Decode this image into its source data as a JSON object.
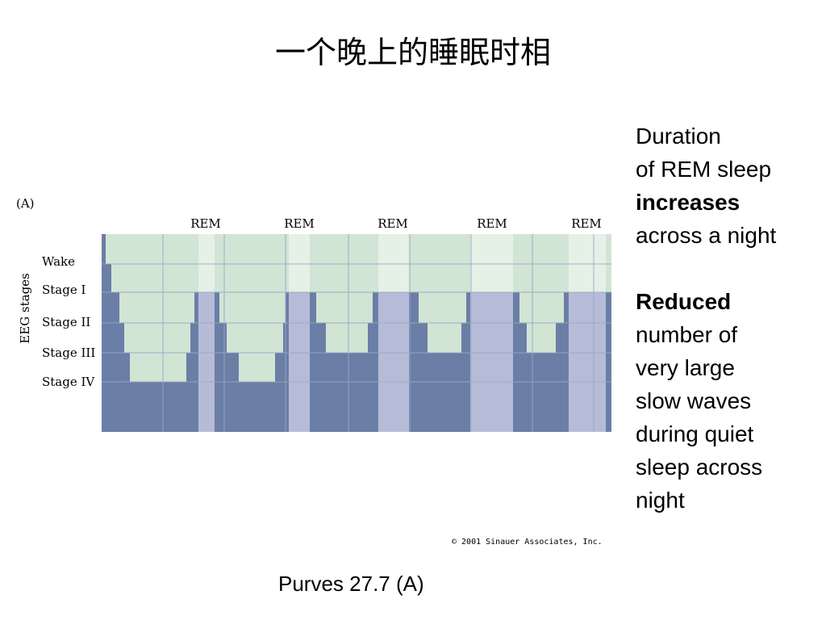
{
  "title": "一个晚上的睡眠时相",
  "figure": {
    "panel_label": "(A)",
    "y_axis_label": "EEG stages",
    "stages": [
      "Wake",
      "Stage I",
      "Stage II",
      "Stage III",
      "Stage IV"
    ],
    "rem_label": "REM",
    "rem_markers": [
      "REM",
      "REM",
      "REM",
      "REM",
      "REM"
    ],
    "colors": {
      "quiet_sleep_fill": "#6b7ea6",
      "rem_fill": "#b6bcd8",
      "wake_background": "#d2e4d4",
      "rem_highlight": "#e5f0e7",
      "grid_line": "#9aa8c4"
    },
    "copyright": "© 2001 Sinauer Associates, Inc."
  },
  "notes": {
    "rem": {
      "line1": "Duration",
      "line2": "of REM sleep",
      "line3": "increases",
      "line4": "across a night"
    },
    "slow_waves": {
      "line1": "Reduced",
      "line2": "number of",
      "line3": "very large",
      "line4": "slow waves",
      "line5": "during quiet",
      "line6": "sleep across",
      "line7": "night"
    }
  },
  "caption": "Purves 27.7 (A)"
}
